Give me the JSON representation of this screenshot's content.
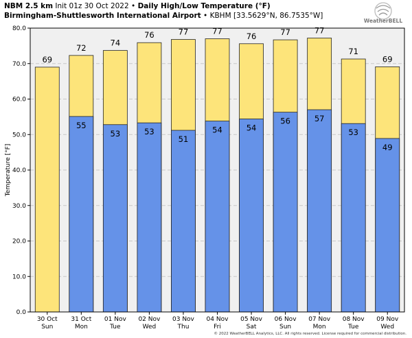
{
  "header": {
    "model": "NBM 2.5 km",
    "init": "Init 01z 30 Oct 2022",
    "sep1": "•",
    "product": "Daily High/Low Temperature (°F)",
    "station_name": "Birmingham-Shuttlesworth International Airport",
    "sep2": "•",
    "station_meta": "KBHM [33.5629°N, 86.7535°W]"
  },
  "logo": {
    "text": "WeatherBELL",
    "icon": "weatherbell-swirl-icon"
  },
  "copyright": "© 2022 WeatherBELL Analytics, LLC. All rights reserved. License required for commercial distribution.",
  "colors": {
    "high": "#fde47a",
    "low": "#6592e8",
    "plot_bg": "#f0f0f0",
    "grid": "#c8c8c8",
    "bar_edge": "#222222"
  },
  "chart_data": {
    "type": "bar",
    "ylabel": "Temperature [°F]",
    "ylim": [
      0,
      80
    ],
    "yticks": [
      "0.0",
      "10.0",
      "20.0",
      "30.0",
      "40.0",
      "50.0",
      "60.0",
      "70.0",
      "80.0"
    ],
    "grid": true,
    "categories": [
      [
        "30 Oct",
        "Sun"
      ],
      [
        "31 Oct",
        "Mon"
      ],
      [
        "01 Nov",
        "Tue"
      ],
      [
        "02 Nov",
        "Wed"
      ],
      [
        "03 Nov",
        "Thu"
      ],
      [
        "04 Nov",
        "Fri"
      ],
      [
        "05 Nov",
        "Sat"
      ],
      [
        "06 Nov",
        "Sun"
      ],
      [
        "07 Nov",
        "Mon"
      ],
      [
        "08 Nov",
        "Tue"
      ],
      [
        "09 Nov",
        "Wed"
      ]
    ],
    "series": [
      {
        "key": "high",
        "values": [
          69,
          72.3,
          73.7,
          75.9,
          76.8,
          77.0,
          75.6,
          76.7,
          77.2,
          71.3,
          69.1
        ],
        "labels": [
          "69",
          "72",
          "74",
          "76",
          "77",
          "77",
          "76",
          "77",
          "77",
          "71",
          "69"
        ]
      },
      {
        "key": "low",
        "values": [
          null,
          55.1,
          52.8,
          53.3,
          51.2,
          53.8,
          54.4,
          56.3,
          57.0,
          53.1,
          48.9
        ],
        "labels": [
          "",
          "55",
          "53",
          "53",
          "51",
          "54",
          "54",
          "56",
          "57",
          "53",
          "49"
        ]
      }
    ]
  }
}
